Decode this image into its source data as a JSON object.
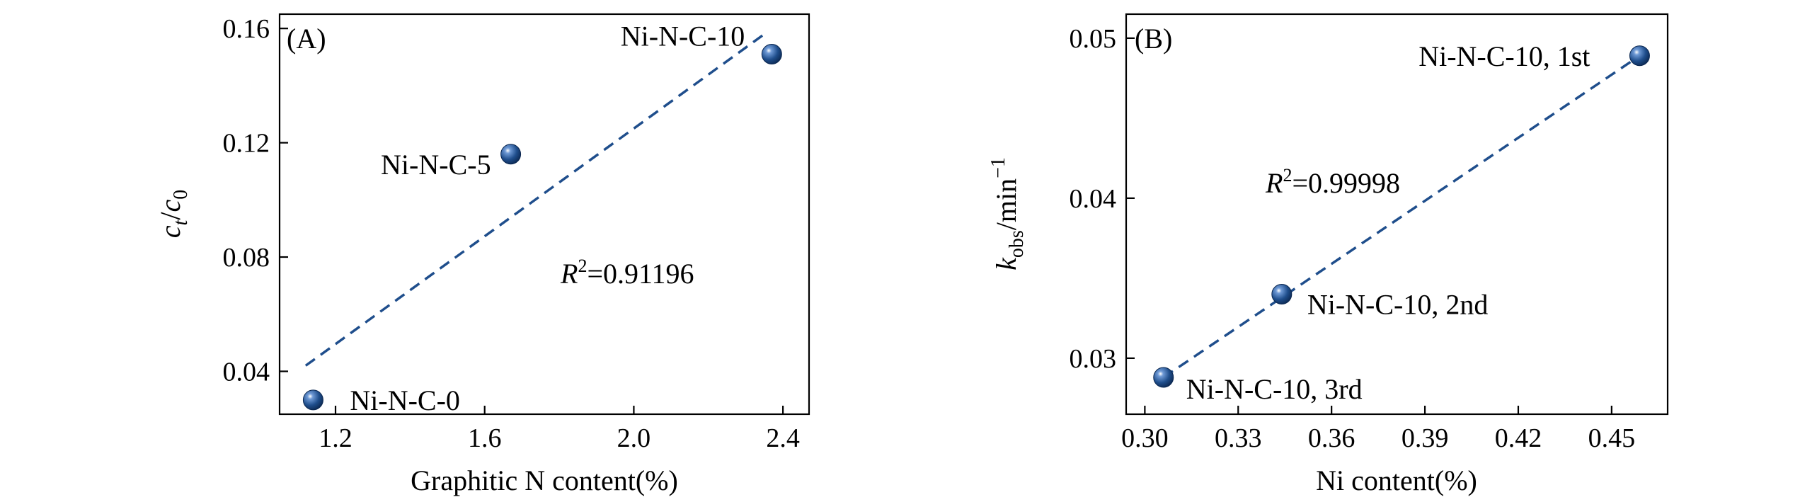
{
  "chart_data": [
    {
      "type": "scatter",
      "panel_label": "(A)",
      "xlabel": "Graphitic N content(%)",
      "ylabel_main": "c",
      "ylabel_sub1": "t",
      "ylabel_sep": "/",
      "ylabel_main2": "c",
      "ylabel_sub2": "0",
      "xlim": [
        1.05,
        2.47
      ],
      "ylim": [
        0.025,
        0.165
      ],
      "xticks": [
        1.2,
        1.6,
        2.0,
        2.4
      ],
      "xtick_labels": [
        "1.2",
        "1.6",
        "2.0",
        "2.4"
      ],
      "yticks": [
        0.04,
        0.08,
        0.12,
        0.16
      ],
      "ytick_labels": [
        "0.04",
        "0.08",
        "0.12",
        "0.16"
      ],
      "points": [
        {
          "x": 1.14,
          "y": 0.03,
          "label": "Ni-N-C-0"
        },
        {
          "x": 1.67,
          "y": 0.116,
          "label": "Ni-N-C-5"
        },
        {
          "x": 2.37,
          "y": 0.151,
          "label": "Ni-N-C-10"
        }
      ],
      "fit_line": {
        "x": [
          1.12,
          2.35
        ],
        "y": [
          0.042,
          0.158
        ]
      },
      "r2_italic": "R",
      "r2_sup": "2",
      "r2_value": "=0.91196",
      "marker_color": "#1f4e8c",
      "line_color": "#1f4e8c"
    },
    {
      "type": "scatter",
      "panel_label": "(B)",
      "xlabel": "Ni content(%)",
      "ylabel_main": "k",
      "ylabel_sub": "obs",
      "ylabel_unit": "/min",
      "ylabel_sup": "−1",
      "xlim": [
        0.294,
        0.468
      ],
      "ylim": [
        0.0265,
        0.0515
      ],
      "xticks": [
        0.3,
        0.33,
        0.36,
        0.39,
        0.42,
        0.45
      ],
      "xtick_labels": [
        "0.30",
        "0.33",
        "0.36",
        "0.39",
        "0.42",
        "0.45"
      ],
      "yticks": [
        0.03,
        0.04,
        0.05
      ],
      "ytick_labels": [
        "0.03",
        "0.04",
        "0.05"
      ],
      "points": [
        {
          "x": 0.306,
          "y": 0.0288,
          "label": "Ni-N-C-10, 3rd"
        },
        {
          "x": 0.344,
          "y": 0.034,
          "label": "Ni-N-C-10, 2nd"
        },
        {
          "x": 0.459,
          "y": 0.0489,
          "label": "Ni-N-C-10, 1st"
        }
      ],
      "fit_line": {
        "x": [
          0.306,
          0.459
        ],
        "y": [
          0.0288,
          0.0489
        ]
      },
      "r2_italic": "R",
      "r2_sup": "2",
      "r2_value": "=0.99998",
      "marker_color": "#1f4e8c",
      "line_color": "#1f4e8c"
    }
  ]
}
